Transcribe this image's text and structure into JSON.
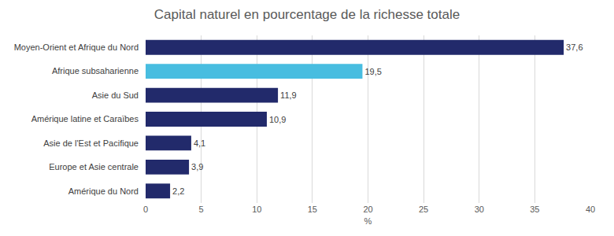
{
  "chart_data": {
    "type": "bar",
    "title": "Capital naturel en pourcentage de la richesse totale",
    "orientation": "horizontal",
    "categories": [
      "Moyen-Orient et Afrique du Nord",
      "Afrique subsaharienne",
      "Asie du Sud",
      "Amérique latine et Caraïbes",
      "Asie de l'Est et Pacifique",
      "Europe et Asie centrale",
      "Amérique du Nord"
    ],
    "values": [
      37.6,
      19.5,
      11.9,
      10.9,
      4.1,
      3.9,
      2.2
    ],
    "value_labels": [
      "37,6",
      "19,5",
      "11,9",
      "10,9",
      "4,1",
      "3,9",
      "2,2"
    ],
    "colors": [
      "#222a6b",
      "#48bde0",
      "#222a6b",
      "#222a6b",
      "#222a6b",
      "#222a6b",
      "#222a6b"
    ],
    "xlim": [
      0,
      40
    ],
    "xticks": [
      0,
      5,
      10,
      15,
      20,
      25,
      30,
      35,
      40
    ],
    "xlabel": "%",
    "grid": true,
    "data_labels": true
  }
}
